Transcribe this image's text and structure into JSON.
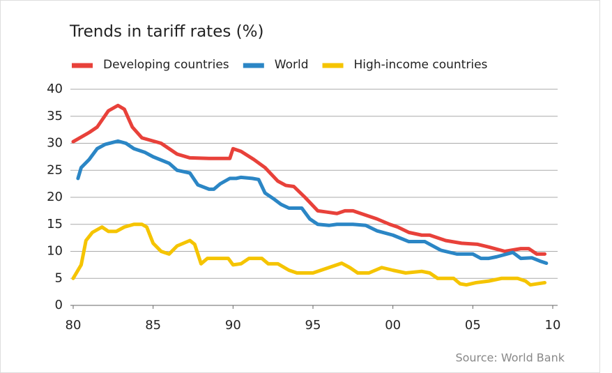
{
  "chart_data": {
    "type": "line",
    "title": "Trends in tariff rates (%)",
    "source": "Source: World Bank",
    "series": [
      {
        "name": "Developing countries",
        "color": "#e8413a",
        "x": [
          1980,
          1981,
          1981.5,
          1982.2,
          1982.8,
          1983.2,
          1983.7,
          1984.3,
          1985.5,
          1986,
          1986.5,
          1987.3,
          1988.5,
          1989.8,
          1990,
          1990.5,
          1991.3,
          1992,
          1992.8,
          1993.3,
          1993.8,
          1994.5,
          1995.3,
          1995.8,
          1996.5,
          1997,
          1997.5,
          1998,
          1999,
          1999.8,
          2000.3,
          2001,
          2001.8,
          2002.3,
          2003.3,
          2004.3,
          2005.3,
          2006,
          2007,
          2008,
          2008.5,
          2009,
          2009.5
        ],
        "values": [
          30.3,
          32,
          33,
          36,
          37,
          36.3,
          33,
          31,
          30,
          29,
          28,
          27.3,
          27.2,
          27.2,
          29,
          28.5,
          27,
          25.5,
          23,
          22.2,
          22,
          20,
          17.5,
          17.3,
          17,
          17.5,
          17.5,
          17,
          16,
          15,
          14.5,
          13.5,
          13,
          13,
          12,
          11.5,
          11.3,
          10.8,
          10,
          10.5,
          10.5,
          9.5,
          9.5
        ]
      },
      {
        "name": "World",
        "color": "#2b86c5",
        "x": [
          1980.3,
          1980.5,
          1981,
          1981.5,
          1982,
          1982.8,
          1983.3,
          1983.8,
          1984.5,
          1985,
          1986,
          1986.5,
          1987.3,
          1987.8,
          1988.5,
          1988.8,
          1989.2,
          1989.8,
          1990.2,
          1990.5,
          1991.2,
          1991.6,
          1992,
          1992.5,
          1993,
          1993.5,
          1994.3,
          1994.8,
          1995.3,
          1996,
          1996.5,
          1997.5,
          1998.3,
          1999,
          2000,
          2001,
          2002,
          2003,
          2004,
          2005,
          2005.5,
          2006,
          2006.5,
          2007.5,
          2008,
          2008.7,
          2009.2,
          2009.6
        ],
        "values": [
          23.5,
          25.5,
          27,
          29,
          29.8,
          30.4,
          30,
          29,
          28.3,
          27.5,
          26.3,
          25,
          24.5,
          22.3,
          21.5,
          21.5,
          22.5,
          23.5,
          23.5,
          23.7,
          23.5,
          23.3,
          20.8,
          19.8,
          18.7,
          18,
          18,
          16,
          15,
          14.8,
          15,
          15,
          14.8,
          13.8,
          13,
          11.8,
          11.8,
          10.2,
          9.5,
          9.5,
          8.7,
          8.7,
          9,
          9.8,
          8.7,
          8.8,
          8.2,
          7.8
        ]
      },
      {
        "name": "High-income countries",
        "color": "#f5c400",
        "x": [
          1980,
          1980.5,
          1980.8,
          1981.2,
          1981.8,
          1982.2,
          1982.7,
          1983.2,
          1983.8,
          1984.3,
          1984.6,
          1985,
          1985.5,
          1986,
          1986.5,
          1987.3,
          1987.6,
          1988,
          1988.4,
          1989.7,
          1990,
          1990.5,
          1991,
          1991.8,
          1992.2,
          1992.8,
          1993.5,
          1994,
          1995,
          1995.5,
          1996,
          1996.8,
          1997.3,
          1997.8,
          1998.5,
          1999.3,
          2000,
          2000.8,
          2001.8,
          2002.3,
          2002.8,
          2003.8,
          2004.2,
          2004.6,
          2005.2,
          2006,
          2006.8,
          2007.8,
          2008.3,
          2008.6,
          2009.5
        ],
        "values": [
          5,
          7.5,
          12,
          13.5,
          14.5,
          13.7,
          13.7,
          14.5,
          15,
          15,
          14.5,
          11.5,
          10,
          9.5,
          11,
          12,
          11.3,
          7.7,
          8.7,
          8.7,
          7.5,
          7.7,
          8.7,
          8.7,
          7.7,
          7.7,
          6.5,
          6,
          6,
          6.5,
          7,
          7.8,
          7,
          6,
          6,
          7,
          6.5,
          6,
          6.3,
          6,
          5,
          5,
          4,
          3.8,
          4.2,
          4.5,
          5,
          5,
          4.5,
          3.8,
          4.2
        ]
      }
    ],
    "xlim": [
      1980,
      2010
    ],
    "xticks": [
      {
        "value": 1980,
        "label": "80"
      },
      {
        "value": 1985,
        "label": "85"
      },
      {
        "value": 1990,
        "label": "90"
      },
      {
        "value": 1995,
        "label": "95"
      },
      {
        "value": 2000,
        "label": "00"
      },
      {
        "value": 2005,
        "label": "05"
      },
      {
        "value": 2010,
        "label": "10"
      }
    ],
    "ylim": [
      0,
      40
    ],
    "yticks": [
      0,
      5,
      10,
      15,
      20,
      25,
      30,
      35,
      40
    ],
    "grid": true,
    "legend": "top"
  }
}
